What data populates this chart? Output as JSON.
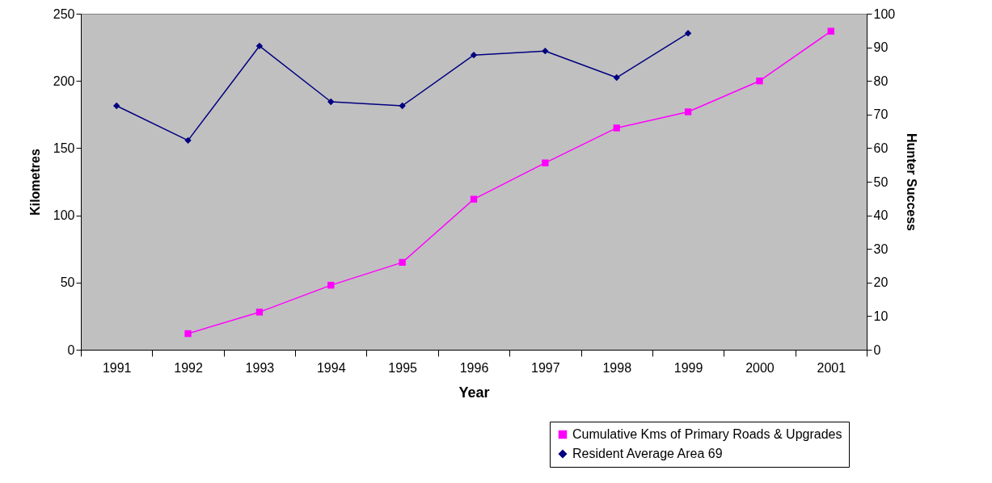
{
  "chart_data": {
    "type": "line",
    "xlabel": "Year",
    "ylabel": "Kilometres",
    "y2label": "Hunter Success",
    "categories": [
      "1991",
      "1992",
      "1993",
      "1994",
      "1995",
      "1996",
      "1997",
      "1998",
      "1999",
      "2000",
      "2001"
    ],
    "series": [
      {
        "name": "Cumulative Kms of Primary Roads & Upgrades",
        "color": "#ff00ff",
        "marker": "square",
        "values": [
          null,
          12,
          28,
          48,
          65,
          112,
          139,
          165,
          177,
          200,
          237
        ]
      },
      {
        "name": "Resident Average Area 69",
        "color": "#000080",
        "marker": "diamond",
        "axis": "y2",
        "values": [
          72.6,
          62.3,
          90.4,
          73.8,
          72.6,
          87.7,
          88.9,
          81,
          94.2,
          null,
          null
        ]
      }
    ],
    "ylim": [
      0,
      250
    ],
    "yticks": [
      0,
      50,
      100,
      150,
      200,
      250
    ],
    "y2lim": [
      0,
      100
    ],
    "y2ticks": [
      0,
      10,
      20,
      30,
      40,
      50,
      60,
      70,
      80,
      90,
      100
    ],
    "legend": "bottom right",
    "grid": false
  }
}
